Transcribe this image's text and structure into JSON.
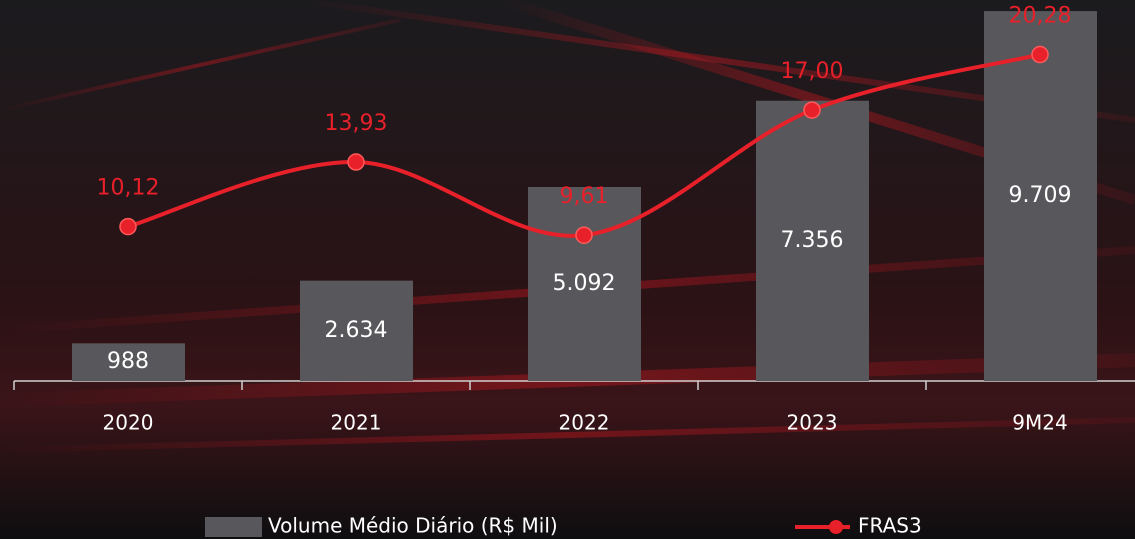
{
  "chart_data": {
    "type": "bar-line",
    "categories": [
      "2020",
      "2021",
      "2022",
      "2023",
      "9M24"
    ],
    "series": [
      {
        "name": "Volume Médio Diário (R$ Mil)",
        "type": "bar",
        "color": "#58585c",
        "values": [
          988,
          2634,
          5092,
          7356,
          9709
        ],
        "value_labels": [
          "988",
          "2.634",
          "5.092",
          "7.356",
          "9.709"
        ]
      },
      {
        "name": "FRAS3",
        "type": "line",
        "axis": "y2",
        "color": "#e8202a",
        "values": [
          10.12,
          13.93,
          9.61,
          17.0,
          20.28
        ],
        "value_labels": [
          "10,12",
          "13,93",
          "9,61",
          "17,00",
          "20,28"
        ]
      }
    ],
    "ylim": [
      0,
      10000
    ],
    "y2lim": [
      1,
      23.5
    ],
    "legend": "bottom"
  }
}
